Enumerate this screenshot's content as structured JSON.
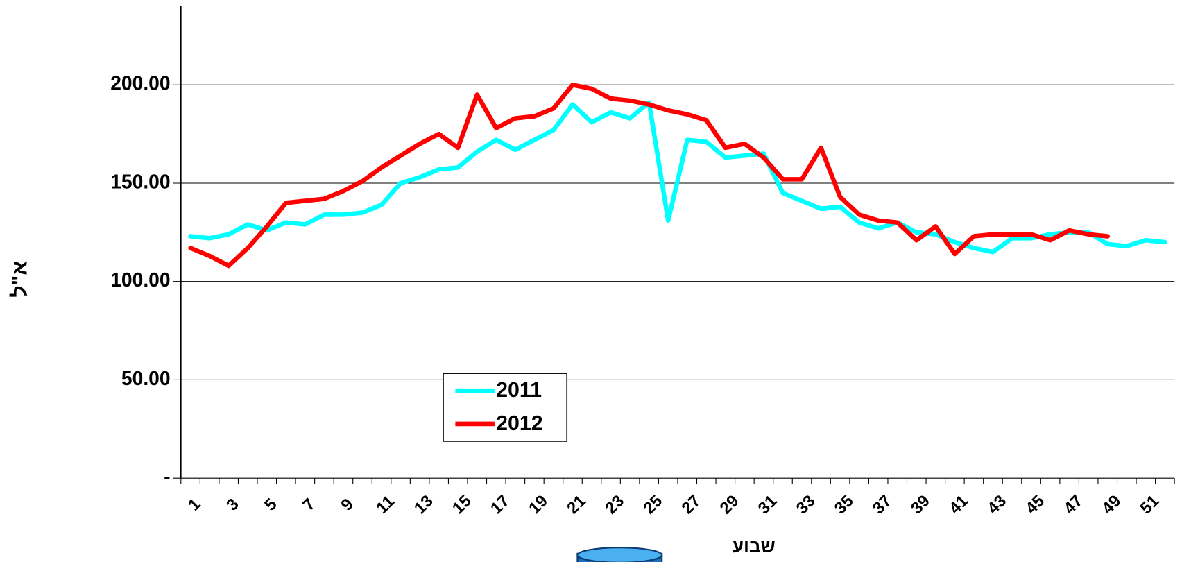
{
  "chart_data": {
    "type": "line",
    "y_label": "א\"ל",
    "x_label": "שבוע",
    "categories": [
      1,
      null,
      3,
      null,
      5,
      null,
      7,
      null,
      9,
      null,
      11,
      null,
      13,
      null,
      15,
      null,
      17,
      null,
      19,
      null,
      21,
      null,
      23,
      null,
      25,
      null,
      27,
      null,
      29,
      null,
      31,
      null,
      33,
      null,
      35,
      null,
      37,
      null,
      39,
      null,
      41,
      null,
      43,
      null,
      45,
      null,
      47,
      null,
      49,
      null,
      51,
      null
    ],
    "series": [
      {
        "name": "2011",
        "color": "#00ffff",
        "values": [
          123,
          122,
          124,
          129,
          126,
          130,
          129,
          134,
          134,
          135,
          139,
          150,
          153,
          157,
          158,
          166,
          172,
          167,
          172,
          177,
          190,
          181,
          186,
          183,
          191,
          131,
          172,
          171,
          163,
          164,
          165,
          145,
          141,
          137,
          138,
          130,
          127,
          130,
          125,
          124,
          120,
          117,
          115,
          122,
          122,
          124,
          125,
          125,
          119,
          118,
          121,
          120
        ]
      },
      {
        "name": "2012",
        "color": "#ff0000",
        "values": [
          117,
          113,
          108,
          117,
          128,
          140,
          141,
          142,
          146,
          151,
          158,
          164,
          170,
          175,
          168,
          195,
          178,
          183,
          184,
          188,
          200,
          198,
          193,
          192,
          190,
          187,
          185,
          182,
          168,
          170,
          163,
          152,
          152,
          168,
          143,
          134,
          131,
          130,
          121,
          128,
          114,
          123,
          124,
          124,
          124,
          121,
          126,
          124,
          123,
          null,
          null,
          null
        ]
      }
    ],
    "ylim": [
      0,
      240
    ],
    "yticks": [
      {
        "value": 0,
        "label": "-"
      },
      {
        "value": 50,
        "label": "50.00"
      },
      {
        "value": 100,
        "label": "100.00"
      },
      {
        "value": 150,
        "label": "150.00"
      },
      {
        "value": 200,
        "label": "200.00"
      }
    ],
    "grid": true
  }
}
